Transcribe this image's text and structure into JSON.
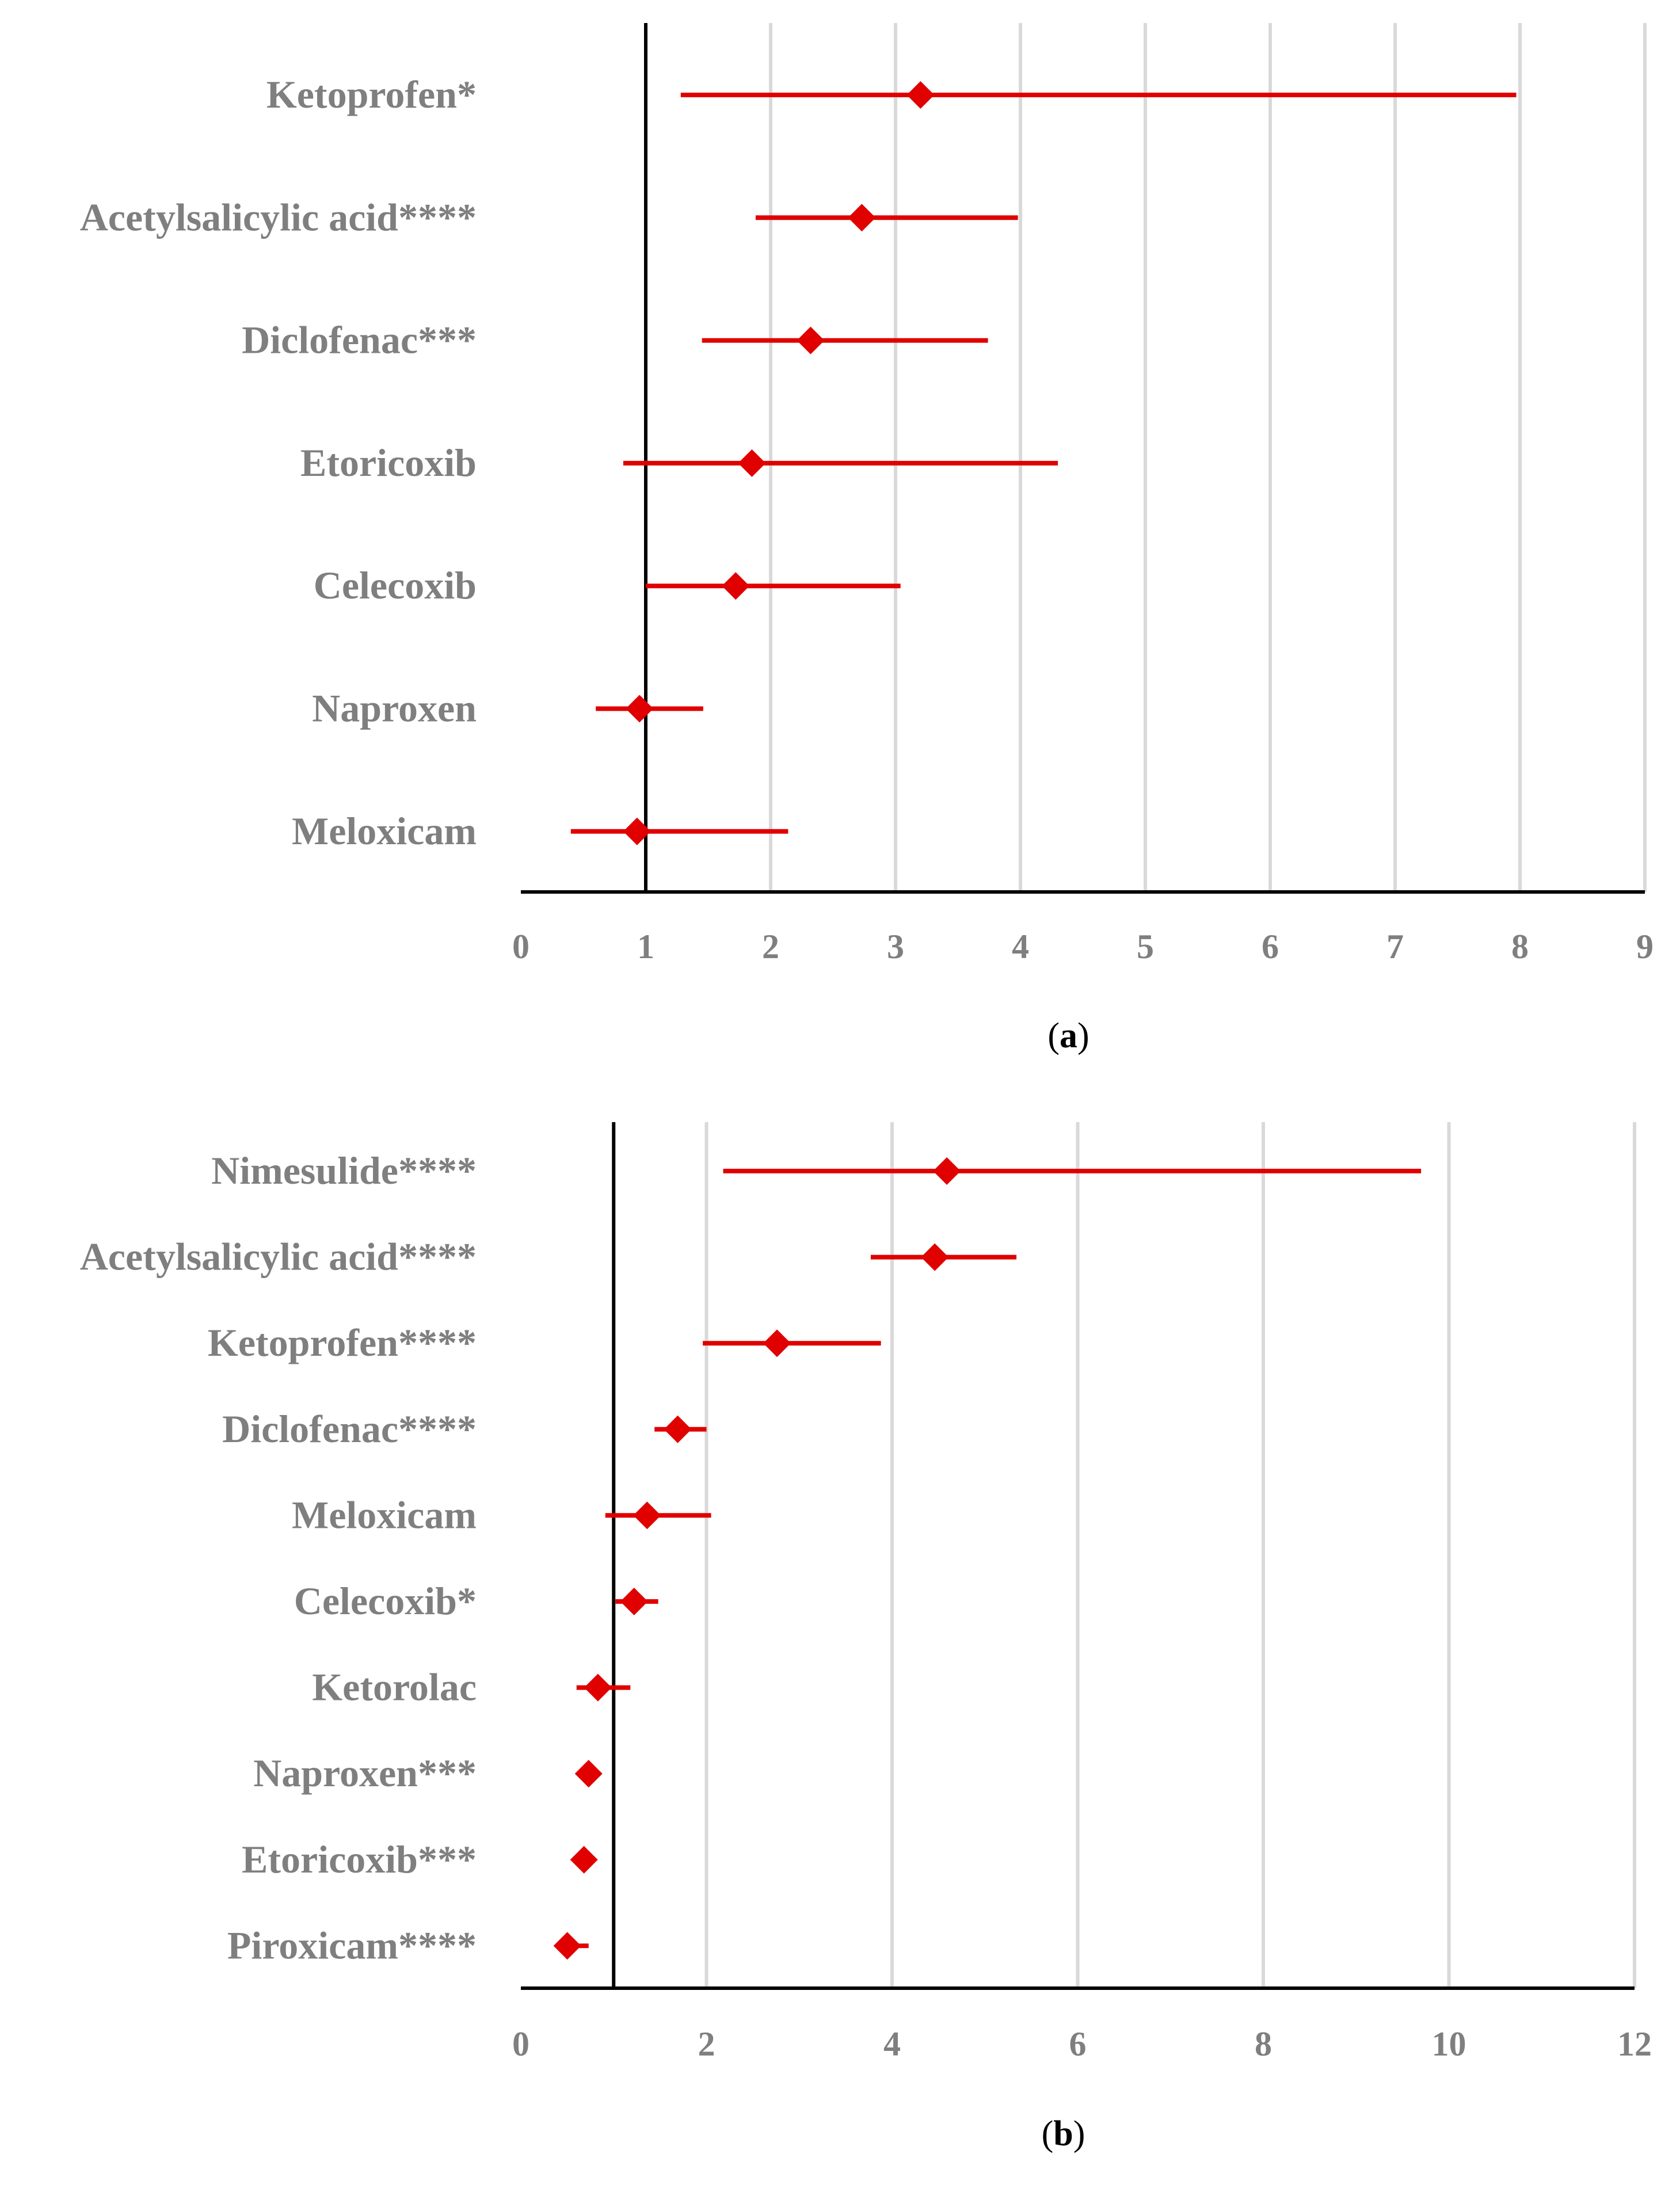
{
  "colors": {
    "series": "#e00000",
    "grid": "#d9d9d9",
    "axis": "#000000",
    "label": "#7f7f7f"
  },
  "chart_data": [
    {
      "type": "forest",
      "panel_label": "a",
      "xlim": [
        0,
        9
      ],
      "ticks": [
        0,
        1,
        2,
        3,
        4,
        5,
        6,
        7,
        8,
        9
      ],
      "reference_line": 1,
      "grid": true,
      "rows": [
        {
          "label": "Ketoprofen*",
          "point": 3.2,
          "lo": 1.28,
          "hi": 7.97
        },
        {
          "label": "Acetylsalicylic acid****",
          "point": 2.73,
          "lo": 1.88,
          "hi": 3.98
        },
        {
          "label": "Diclofenac***",
          "point": 2.32,
          "lo": 1.45,
          "hi": 3.74
        },
        {
          "label": "Etoricoxib",
          "point": 1.85,
          "lo": 0.82,
          "hi": 4.3
        },
        {
          "label": "Celecoxib",
          "point": 1.72,
          "lo": 1.0,
          "hi": 3.04
        },
        {
          "label": "Naproxen",
          "point": 0.95,
          "lo": 0.6,
          "hi": 1.46
        },
        {
          "label": "Meloxicam",
          "point": 0.93,
          "lo": 0.4,
          "hi": 2.14
        }
      ]
    },
    {
      "type": "forest",
      "panel_label": "b",
      "xlim": [
        0,
        12
      ],
      "ticks": [
        0,
        2,
        4,
        6,
        8,
        10,
        12
      ],
      "reference_line": 1,
      "grid": true,
      "rows": [
        {
          "label": "Nimesulide****",
          "point": 4.59,
          "lo": 2.18,
          "hi": 9.7
        },
        {
          "label": "Acetylsalicylic acid****",
          "point": 4.46,
          "lo": 3.77,
          "hi": 5.34
        },
        {
          "label": "Ketoprofen****",
          "point": 2.76,
          "lo": 1.96,
          "hi": 3.88
        },
        {
          "label": "Diclofenac****",
          "point": 1.69,
          "lo": 1.44,
          "hi": 2.0
        },
        {
          "label": "Meloxicam",
          "point": 1.36,
          "lo": 0.91,
          "hi": 2.05
        },
        {
          "label": "Celecoxib*",
          "point": 1.22,
          "lo": 1.02,
          "hi": 1.48
        },
        {
          "label": "Ketorolac",
          "point": 0.83,
          "lo": 0.6,
          "hi": 1.18
        },
        {
          "label": "Naproxen***",
          "point": 0.73,
          "lo": 0.67,
          "hi": 0.81
        },
        {
          "label": "Etoricoxib***",
          "point": 0.68,
          "lo": 0.6,
          "hi": 0.77
        },
        {
          "label": "Piroxicam****",
          "point": 0.5,
          "lo": 0.4,
          "hi": 0.73
        }
      ]
    }
  ]
}
